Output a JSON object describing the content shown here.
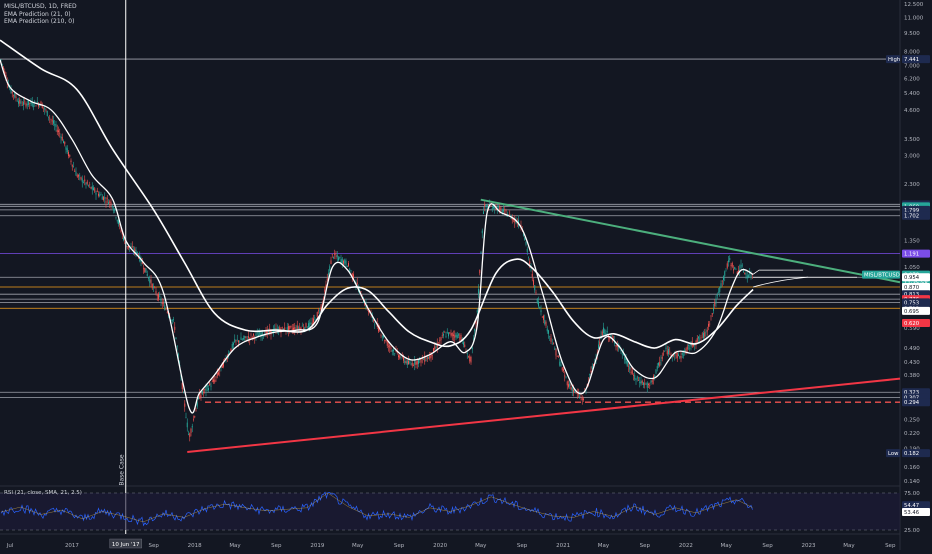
{
  "legend": {
    "symbol": "MISL/BTCUSD, 1D, FRED",
    "ema_short": "EMA Prediction (21, 0)",
    "ema_long": "EMA Prediction (210, 0)"
  },
  "rsi_legend": "RSI (21, close, SMA, 21, 2.5)",
  "annotations": {
    "base_case": "Base Case",
    "cursor_date": "10 Jun '17"
  },
  "colors": {
    "background": "#131722",
    "price_up": "#26a69a",
    "price_down": "#ef5350",
    "ema": "#ffffff",
    "resistance_trend": "#4caf7d",
    "support_trend": "#f23645",
    "purple_level": "#7b4de8",
    "orange_level": "#f7a21b",
    "rsi": "#2962ff",
    "current_badge": "#26a69a"
  },
  "chart_data": {
    "type": "line",
    "title": "",
    "xlabel": "",
    "ylabel": "",
    "scale": "log",
    "ylim": [
      0.14,
      12.5
    ],
    "xlim": [
      "2016-06-01",
      "2023-09-30"
    ],
    "x_tick_labels": [
      "Jul",
      "2017",
      "Sep",
      "2018",
      "May",
      "Sep",
      "2019",
      "May",
      "Sep",
      "2020",
      "May",
      "Sep",
      "2021",
      "May",
      "Sep",
      "2022",
      "May",
      "Sep",
      "2023",
      "May",
      "Sep"
    ],
    "x_tick_dates": [
      "2016-07-01",
      "2017-01-01",
      "2017-09-01",
      "2018-01-01",
      "2018-05-01",
      "2018-09-01",
      "2019-01-01",
      "2019-05-01",
      "2019-09-01",
      "2020-01-01",
      "2020-05-01",
      "2020-09-01",
      "2021-01-01",
      "2021-05-01",
      "2021-09-01",
      "2022-01-01",
      "2022-05-01",
      "2022-09-01",
      "2023-01-01",
      "2023-05-01",
      "2023-09-01"
    ],
    "y_tick_labels": [
      "12.500",
      "11.000",
      "9.500",
      "8.000",
      "7.000",
      "6.200",
      "5.400",
      "4.600",
      "3.500",
      "3.000",
      "2.300",
      "1.800",
      "1.350",
      "1.050",
      "0.870",
      "0.690",
      "0.590",
      "0.490",
      "0.430",
      "0.380",
      "0.290",
      "0.250",
      "0.220",
      "0.190",
      "0.160",
      "0.140"
    ],
    "y_tick_values": [
      12.5,
      11.0,
      9.5,
      8.0,
      7.0,
      6.2,
      5.4,
      4.6,
      3.5,
      3.0,
      2.3,
      1.8,
      1.35,
      1.05,
      0.87,
      0.69,
      0.59,
      0.49,
      0.43,
      0.38,
      0.29,
      0.25,
      0.22,
      0.19,
      0.16,
      0.14
    ],
    "legend": "top-left",
    "grid": false,
    "series": [
      {
        "name": "MISL/BTCUSD",
        "x": [
          "2016-06-01",
          "2016-07-01",
          "2016-08-01",
          "2016-10-01",
          "2016-12-01",
          "2017-01-15",
          "2017-03-01",
          "2017-05-01",
          "2017-06-10",
          "2017-07-15",
          "2017-09-01",
          "2017-11-01",
          "2017-12-15",
          "2018-01-15",
          "2018-03-01",
          "2018-05-01",
          "2018-07-01",
          "2018-09-01",
          "2018-11-01",
          "2018-12-15",
          "2019-01-15",
          "2019-02-15",
          "2019-04-01",
          "2019-06-01",
          "2019-08-01",
          "2019-10-01",
          "2019-12-01",
          "2020-01-15",
          "2020-03-01",
          "2020-04-01",
          "2020-04-20",
          "2020-05-10",
          "2020-06-15",
          "2020-07-15",
          "2020-09-01",
          "2020-10-15",
          "2020-12-01",
          "2021-01-15",
          "2021-03-01",
          "2021-05-01",
          "2021-06-15",
          "2021-08-01",
          "2021-09-15",
          "2021-11-01",
          "2021-12-15",
          "2022-01-15",
          "2022-03-01",
          "2022-04-15",
          "2022-05-10",
          "2022-06-01",
          "2022-06-15",
          "2022-07-01",
          "2022-07-20"
        ],
        "values": [
          7.6,
          5.6,
          4.9,
          4.9,
          3.6,
          2.5,
          2.2,
          1.9,
          1.3,
          1.2,
          0.86,
          0.62,
          0.21,
          0.31,
          0.36,
          0.52,
          0.55,
          0.58,
          0.59,
          0.61,
          0.73,
          1.18,
          1.08,
          0.7,
          0.5,
          0.42,
          0.45,
          0.56,
          0.55,
          0.43,
          0.67,
          1.85,
          1.85,
          1.75,
          1.55,
          0.78,
          0.51,
          0.35,
          0.3,
          0.58,
          0.5,
          0.37,
          0.34,
          0.48,
          0.45,
          0.5,
          0.56,
          0.88,
          1.12,
          1.0,
          1.05,
          0.97,
          0.97
        ]
      },
      {
        "name": "EMA Prediction (21, 0)",
        "x": [
          "2016-06-01",
          "2016-07-01",
          "2016-09-01",
          "2016-11-01",
          "2017-01-01",
          "2017-03-01",
          "2017-05-01",
          "2017-06-10",
          "2017-08-01",
          "2017-10-01",
          "2017-12-15",
          "2018-01-15",
          "2018-03-01",
          "2018-05-01",
          "2018-07-01",
          "2018-09-01",
          "2018-11-01",
          "2019-01-01",
          "2019-02-15",
          "2019-04-01",
          "2019-06-01",
          "2019-08-01",
          "2019-10-01",
          "2019-12-01",
          "2020-02-01",
          "2020-03-15",
          "2020-04-20",
          "2020-05-20",
          "2020-07-01",
          "2020-09-01",
          "2020-11-01",
          "2021-01-01",
          "2021-03-01",
          "2021-05-01",
          "2021-06-15",
          "2021-08-01",
          "2021-10-01",
          "2021-12-01",
          "2022-02-01",
          "2022-04-01",
          "2022-05-15",
          "2022-06-15",
          "2022-07-20"
        ],
        "values": [
          7.4,
          5.7,
          5.0,
          4.6,
          3.5,
          2.5,
          2.0,
          1.35,
          1.1,
          0.82,
          0.28,
          0.32,
          0.38,
          0.49,
          0.54,
          0.57,
          0.58,
          0.62,
          1.05,
          1.02,
          0.71,
          0.52,
          0.44,
          0.46,
          0.52,
          0.47,
          0.6,
          1.75,
          1.75,
          1.5,
          0.82,
          0.42,
          0.32,
          0.53,
          0.5,
          0.4,
          0.37,
          0.47,
          0.47,
          0.58,
          0.85,
          1.02,
          0.98
        ]
      },
      {
        "name": "EMA Prediction (210, 0)",
        "x": [
          "2016-06-01",
          "2016-10-01",
          "2017-01-15",
          "2017-05-01",
          "2017-09-01",
          "2017-12-01",
          "2018-03-01",
          "2018-06-01",
          "2018-09-01",
          "2018-12-01",
          "2019-02-01",
          "2019-04-01",
          "2019-06-01",
          "2019-08-01",
          "2019-10-01",
          "2019-12-01",
          "2020-02-01",
          "2020-04-01",
          "2020-06-15",
          "2020-08-15",
          "2020-10-01",
          "2020-12-01",
          "2021-02-01",
          "2021-04-01",
          "2021-06-01",
          "2021-08-01",
          "2021-10-01",
          "2021-12-01",
          "2022-02-01",
          "2022-04-01",
          "2022-06-01",
          "2022-07-20"
        ],
        "values": [
          8.9,
          6.8,
          5.6,
          3.2,
          1.8,
          1.1,
          0.68,
          0.58,
          0.58,
          0.58,
          0.74,
          0.86,
          0.84,
          0.69,
          0.57,
          0.52,
          0.5,
          0.58,
          0.99,
          1.13,
          1.04,
          0.83,
          0.63,
          0.54,
          0.56,
          0.52,
          0.49,
          0.53,
          0.51,
          0.58,
          0.73,
          0.85
        ]
      },
      {
        "name": "RSI (21, close, SMA, 21, 2.5)",
        "range": [
          25,
          75
        ],
        "x": [
          "2016-06-01",
          "2016-08-01",
          "2016-10-01",
          "2016-12-01",
          "2017-02-01",
          "2017-04-01",
          "2017-06-01",
          "2017-08-01",
          "2017-10-01",
          "2017-12-01",
          "2018-02-01",
          "2018-04-01",
          "2018-06-01",
          "2018-08-01",
          "2018-10-01",
          "2018-12-01",
          "2019-02-01",
          "2019-04-01",
          "2019-06-01",
          "2019-08-01",
          "2019-10-01",
          "2019-12-01",
          "2020-02-01",
          "2020-04-01",
          "2020-06-01",
          "2020-08-01",
          "2020-10-01",
          "2020-12-01",
          "2021-02-01",
          "2021-04-01",
          "2021-06-01",
          "2021-08-01",
          "2021-10-01",
          "2021-12-01",
          "2022-02-01",
          "2022-04-01",
          "2022-06-01",
          "2022-07-20"
        ],
        "values": [
          49,
          56,
          46,
          52,
          40,
          50,
          44,
          36,
          47,
          42,
          54,
          60,
          55,
          51,
          53,
          55,
          75,
          57,
          44,
          47,
          42,
          55,
          50,
          58,
          70,
          60,
          51,
          44,
          42,
          50,
          43,
          57,
          46,
          55,
          48,
          58,
          66,
          55
        ]
      }
    ],
    "horizontal_levels": [
      {
        "value": 7.441,
        "label": "High",
        "color": "#cfd2dc"
      },
      {
        "value": 1.895,
        "color": "#cfd2dc"
      },
      {
        "value": 1.86,
        "color": "#cfd2dc"
      },
      {
        "value": 1.799,
        "color": "#cfd2dc"
      },
      {
        "value": 1.702,
        "color": "#cfd2dc"
      },
      {
        "value": 1.191,
        "color": "#7b4de8"
      },
      {
        "value": 0.954,
        "color": "#cfd2dc"
      },
      {
        "value": 0.87,
        "color": "#f7a21b"
      },
      {
        "value": 0.813,
        "color": "#cfd2dc"
      },
      {
        "value": 0.776,
        "color": "#cfd2dc"
      },
      {
        "value": 0.753,
        "color": "#cfd2dc"
      },
      {
        "value": 0.712,
        "color": "#f7a21b"
      },
      {
        "value": 0.323,
        "color": "#cfd2dc"
      },
      {
        "value": 0.307,
        "color": "#cfd2dc"
      },
      {
        "value": 0.294,
        "color": "#ef5350",
        "dashed": true
      }
    ],
    "price_labels": [
      {
        "label": "High",
        "value": "7.441",
        "style": "navy"
      },
      {
        "value": "1.895",
        "style": "navy"
      },
      {
        "value": "1.860",
        "style": "green"
      },
      {
        "value": "1.799",
        "style": "navy"
      },
      {
        "value": "1.702",
        "style": "navy"
      },
      {
        "value": "1.191",
        "style": "purple"
      },
      {
        "label": "MISL/BTCUSD",
        "value": "0.978",
        "countdown": "11:35:58",
        "style": "green"
      },
      {
        "value": "0.954",
        "style": "white"
      },
      {
        "value": "0.870",
        "style": "white"
      },
      {
        "value": "0.813",
        "style": "navy"
      },
      {
        "value": "0.776",
        "style": "red"
      },
      {
        "value": "0.753",
        "style": "navy"
      },
      {
        "value": "0.712",
        "style": "navy"
      },
      {
        "value": "0.695",
        "style": "white"
      },
      {
        "value": "0.620",
        "style": "red"
      },
      {
        "value": "0.323",
        "style": "navy"
      },
      {
        "value": "0.307",
        "style": "navy"
      },
      {
        "value": "0.294",
        "style": "navy"
      },
      {
        "label": "Low",
        "value": "0.182",
        "style": "navy"
      }
    ],
    "rsi_labels": [
      "75.00",
      "54.47",
      "53.46",
      "25.00"
    ],
    "trendlines": [
      {
        "name": "resistance",
        "from": {
          "x": "2020-05-01",
          "y": 1.98
        },
        "to": {
          "x": "2023-09-30",
          "y": 0.91
        },
        "color": "#4caf7d"
      },
      {
        "name": "support",
        "from": {
          "x": "2017-12-10",
          "y": 0.184
        },
        "to": {
          "x": "2023-09-30",
          "y": 0.367
        },
        "color": "#f23645"
      }
    ],
    "vertical_marker": {
      "x": "2017-06-10",
      "label": "Base Case"
    }
  }
}
